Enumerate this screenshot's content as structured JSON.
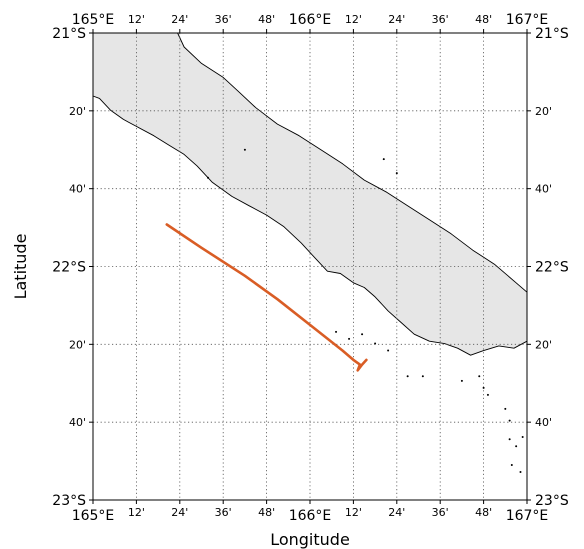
{
  "map": {
    "x_label": "Longitude",
    "y_label": "Latitude",
    "extent": {
      "lon": [
        165.0,
        167.0
      ],
      "lat": [
        -23.0,
        -21.0
      ]
    },
    "gridlines": true,
    "colors": {
      "land": "#e6e6e6",
      "coastline": "#000000",
      "track": "#d95d25",
      "frame": "#000000"
    },
    "lon_ticks": [
      {
        "value": 165.0,
        "label": "165°E",
        "major": true
      },
      {
        "value": 165.2,
        "label": "12'",
        "major": false
      },
      {
        "value": 165.4,
        "label": "24'",
        "major": false
      },
      {
        "value": 165.6,
        "label": "36'",
        "major": false
      },
      {
        "value": 165.8,
        "label": "48'",
        "major": false
      },
      {
        "value": 166.0,
        "label": "166°E",
        "major": true
      },
      {
        "value": 166.2,
        "label": "12'",
        "major": false
      },
      {
        "value": 166.4,
        "label": "24'",
        "major": false
      },
      {
        "value": 166.6,
        "label": "36'",
        "major": false
      },
      {
        "value": 166.8,
        "label": "48'",
        "major": false
      },
      {
        "value": 167.0,
        "label": "167°E",
        "major": true
      }
    ],
    "lat_ticks": [
      {
        "value": -21.0,
        "label": "21°S",
        "major": true
      },
      {
        "value": -21.3333,
        "label": "20'",
        "major": false
      },
      {
        "value": -21.6667,
        "label": "40'",
        "major": false
      },
      {
        "value": -22.0,
        "label": "22°S",
        "major": true
      },
      {
        "value": -22.3333,
        "label": "20'",
        "major": false
      },
      {
        "value": -22.6667,
        "label": "40'",
        "major": false
      },
      {
        "value": -23.0,
        "label": "23°S",
        "major": true
      }
    ],
    "track": [
      [
        165.34,
        -21.82
      ],
      [
        165.5,
        -21.92
      ],
      [
        165.7,
        -22.04
      ],
      [
        165.85,
        -22.14
      ],
      [
        166.0,
        -22.25
      ],
      [
        166.15,
        -22.36
      ],
      [
        166.2,
        -22.4
      ],
      [
        166.23,
        -22.42
      ],
      [
        166.22,
        -22.445
      ],
      [
        166.24,
        -22.42
      ],
      [
        166.26,
        -22.4
      ]
    ],
    "land_outline": [
      [
        165.0,
        -21.0
      ],
      [
        165.39,
        -21.0
      ],
      [
        165.42,
        -21.06
      ],
      [
        165.5,
        -21.13
      ],
      [
        165.6,
        -21.19
      ],
      [
        165.67,
        -21.25
      ],
      [
        165.75,
        -21.32
      ],
      [
        165.85,
        -21.39
      ],
      [
        165.95,
        -21.44
      ],
      [
        166.05,
        -21.5
      ],
      [
        166.15,
        -21.56
      ],
      [
        166.25,
        -21.63
      ],
      [
        166.35,
        -21.68
      ],
      [
        166.45,
        -21.74
      ],
      [
        166.55,
        -21.8
      ],
      [
        166.65,
        -21.86
      ],
      [
        166.75,
        -21.93
      ],
      [
        166.85,
        -21.99
      ],
      [
        166.95,
        -22.07
      ],
      [
        167.0,
        -22.11
      ],
      [
        167.0,
        -22.32
      ],
      [
        166.94,
        -22.35
      ],
      [
        166.87,
        -22.34
      ],
      [
        166.8,
        -22.36
      ],
      [
        166.74,
        -22.38
      ],
      [
        166.68,
        -22.35
      ],
      [
        166.62,
        -22.33
      ],
      [
        166.55,
        -22.32
      ],
      [
        166.48,
        -22.29
      ],
      [
        166.42,
        -22.24
      ],
      [
        166.36,
        -22.19
      ],
      [
        166.3,
        -22.13
      ],
      [
        166.25,
        -22.09
      ],
      [
        166.2,
        -22.07
      ],
      [
        166.14,
        -22.03
      ],
      [
        166.08,
        -22.02
      ],
      [
        166.02,
        -21.96
      ],
      [
        165.96,
        -21.9
      ],
      [
        165.88,
        -21.83
      ],
      [
        165.8,
        -21.78
      ],
      [
        165.72,
        -21.74
      ],
      [
        165.64,
        -21.7
      ],
      [
        165.55,
        -21.64
      ],
      [
        165.48,
        -21.57
      ],
      [
        165.42,
        -21.52
      ],
      [
        165.35,
        -21.48
      ],
      [
        165.28,
        -21.44
      ],
      [
        165.2,
        -21.4
      ],
      [
        165.14,
        -21.37
      ],
      [
        165.08,
        -21.33
      ],
      [
        165.03,
        -21.28
      ],
      [
        165.0,
        -21.27
      ]
    ],
    "islets": [
      [
        166.12,
        -22.28
      ],
      [
        166.18,
        -22.31
      ],
      [
        166.24,
        -22.29
      ],
      [
        166.3,
        -22.33
      ],
      [
        166.36,
        -22.36
      ],
      [
        166.45,
        -22.47
      ],
      [
        166.52,
        -22.47
      ],
      [
        166.7,
        -22.49
      ],
      [
        166.78,
        -22.47
      ],
      [
        166.8,
        -22.52
      ],
      [
        166.82,
        -22.55
      ],
      [
        166.9,
        -22.61
      ],
      [
        166.92,
        -22.66
      ],
      [
        166.92,
        -22.74
      ],
      [
        166.95,
        -22.77
      ],
      [
        166.98,
        -22.73
      ],
      [
        166.93,
        -22.85
      ],
      [
        166.97,
        -22.88
      ],
      [
        166.34,
        -21.54
      ],
      [
        166.4,
        -21.6
      ],
      [
        165.53,
        -21.62
      ],
      [
        165.7,
        -21.5
      ]
    ]
  }
}
